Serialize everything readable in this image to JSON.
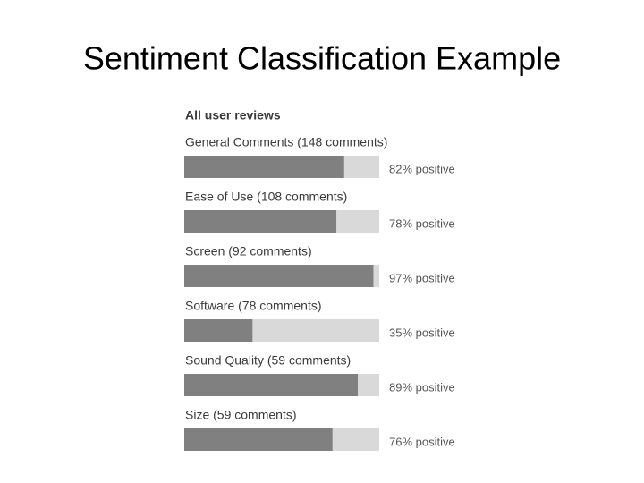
{
  "chart_data": {
    "type": "bar",
    "orientation": "horizontal",
    "title": "Sentiment Classification Example",
    "subtitle": "All user reviews",
    "categories": [
      "General Comments (148 comments)",
      "Ease of Use (108 comments)",
      "Screen (92 comments)",
      "Software (78 comments)",
      "Sound Quality (59 comments)",
      "Size (59 comments)"
    ],
    "values": [
      82,
      78,
      97,
      35,
      89,
      76
    ],
    "value_labels": [
      "82% positive",
      "78% positive",
      "97% positive",
      "35% positive",
      "89% positive",
      "76% positive"
    ],
    "xlim": [
      0,
      100
    ],
    "color": "#808080"
  }
}
